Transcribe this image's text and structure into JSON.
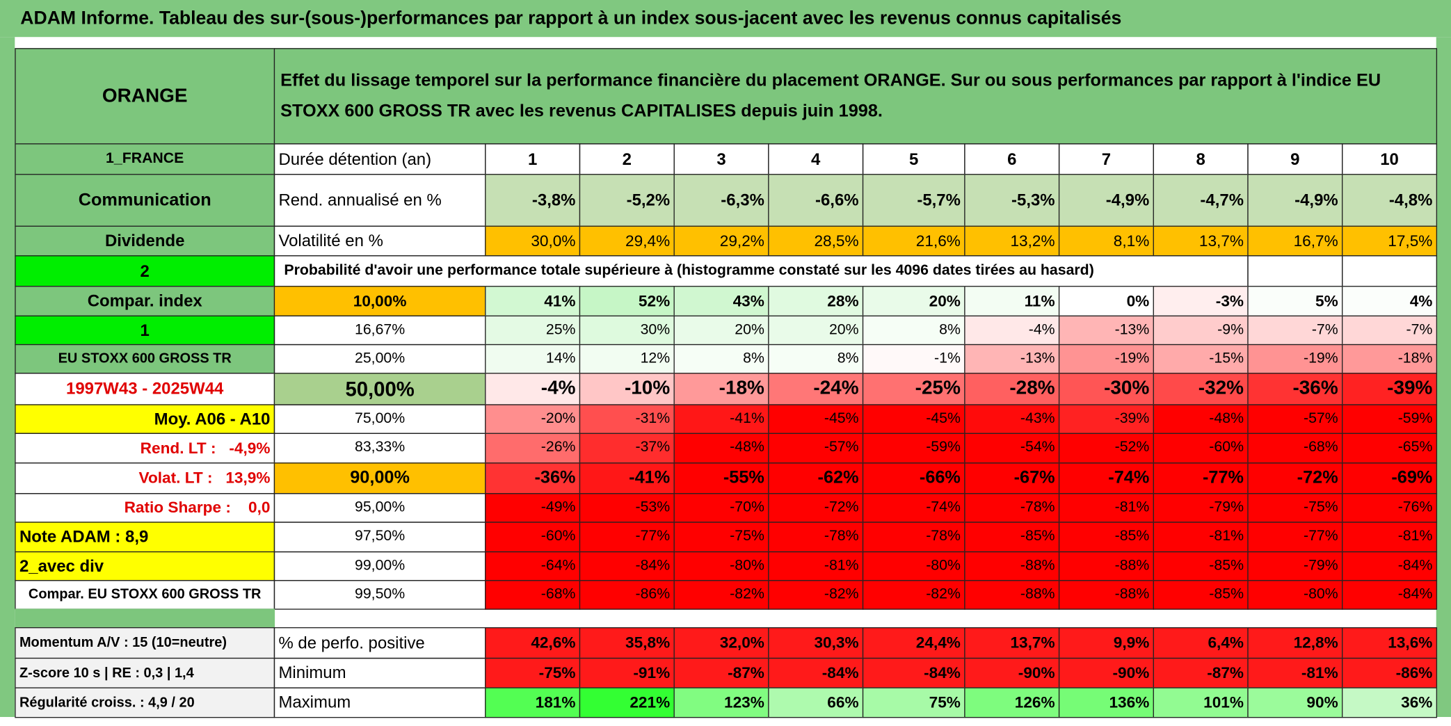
{
  "title": "ADAM Informe. Tableau des sur-(sous-)performances par rapport à un index sous-jacent avec les revenus connus capitalisés",
  "header": {
    "name": "ORANGE",
    "description": "Effet du lissage temporel sur la performance financière du placement ORANGE. Sur ou sous performances par rapport à l'indice EU STOXX 600 GROSS TR avec les revenus CAPITALISES depuis juin 1998."
  },
  "duration": {
    "left": "1_FRANCE",
    "label": "Durée détention (an)",
    "values": [
      "1",
      "2",
      "3",
      "4",
      "5",
      "6",
      "7",
      "8",
      "9",
      "10"
    ]
  },
  "return": {
    "left": "Communication",
    "label": "Rend. annualisé en %",
    "values": [
      "-3,8%",
      "-5,2%",
      "-6,3%",
      "-6,6%",
      "-5,7%",
      "-5,3%",
      "-4,9%",
      "-4,7%",
      "-4,9%",
      "-4,8%"
    ]
  },
  "volatility": {
    "left": "Dividende",
    "label": "Volatilité en %",
    "values": [
      "30,0%",
      "29,4%",
      "29,2%",
      "28,5%",
      "21,6%",
      "13,2%",
      "8,1%",
      "13,7%",
      "16,7%",
      "17,5%"
    ]
  },
  "probability": {
    "left": "2",
    "label": "Probabilité d'avoir une performance totale supérieure à (histogramme constaté sur les 4096 dates tirées au hasard)"
  },
  "percentiles": [
    {
      "left": "Compar. index",
      "level": "10,00%",
      "values": [
        "41%",
        "52%",
        "43%",
        "28%",
        "20%",
        "11%",
        "0%",
        "-3%",
        "5%",
        "4%"
      ]
    },
    {
      "left": "1",
      "level": "16,67%",
      "values": [
        "25%",
        "30%",
        "20%",
        "20%",
        "8%",
        "-4%",
        "-13%",
        "-9%",
        "-7%",
        "-7%"
      ]
    },
    {
      "left": "EU STOXX 600 GROSS TR",
      "level": "25,00%",
      "values": [
        "14%",
        "12%",
        "8%",
        "8%",
        "-1%",
        "-13%",
        "-19%",
        "-15%",
        "-19%",
        "-18%"
      ]
    },
    {
      "left": "1997W43 - 2025W44",
      "level": "50,00%",
      "values": [
        "-4%",
        "-10%",
        "-18%",
        "-24%",
        "-25%",
        "-28%",
        "-30%",
        "-32%",
        "-36%",
        "-39%"
      ]
    },
    {
      "left": "Moy. A06 - A10",
      "level": "75,00%",
      "values": [
        "-20%",
        "-31%",
        "-41%",
        "-45%",
        "-45%",
        "-43%",
        "-39%",
        "-48%",
        "-57%",
        "-59%"
      ]
    },
    {
      "left": "Rend. LT :   -4,9%",
      "level": "83,33%",
      "values": [
        "-26%",
        "-37%",
        "-48%",
        "-57%",
        "-59%",
        "-54%",
        "-52%",
        "-60%",
        "-68%",
        "-65%"
      ]
    },
    {
      "left": "Volat. LT :   13,9%",
      "level": "90,00%",
      "values": [
        "-36%",
        "-41%",
        "-55%",
        "-62%",
        "-66%",
        "-67%",
        "-74%",
        "-77%",
        "-72%",
        "-69%"
      ]
    },
    {
      "left": "Ratio Sharpe :    0,0",
      "level": "95,00%",
      "values": [
        "-49%",
        "-53%",
        "-70%",
        "-72%",
        "-74%",
        "-78%",
        "-81%",
        "-79%",
        "-75%",
        "-76%"
      ]
    },
    {
      "left": "Note ADAM : 8,9",
      "level": "97,50%",
      "values": [
        "-60%",
        "-77%",
        "-75%",
        "-78%",
        "-78%",
        "-85%",
        "-85%",
        "-81%",
        "-77%",
        "-81%"
      ]
    },
    {
      "left": "2_avec div",
      "level": "99,00%",
      "values": [
        "-64%",
        "-84%",
        "-80%",
        "-81%",
        "-80%",
        "-88%",
        "-88%",
        "-85%",
        "-79%",
        "-84%"
      ]
    },
    {
      "left": "Compar. EU STOXX 600 GROSS TR",
      "level": "99,50%",
      "values": [
        "-68%",
        "-86%",
        "-82%",
        "-82%",
        "-82%",
        "-88%",
        "-88%",
        "-85%",
        "-80%",
        "-84%"
      ]
    }
  ],
  "stats": [
    {
      "left": "Momentum A/V : 15 (10=neutre)",
      "label": "% de perfo. positive",
      "values": [
        "42,6%",
        "35,8%",
        "32,0%",
        "30,3%",
        "24,4%",
        "13,7%",
        "9,9%",
        "6,4%",
        "12,8%",
        "13,6%"
      ]
    },
    {
      "left": "Z-score 10 s | RE : 0,3 | 1,4",
      "label": "Minimum",
      "values": [
        "-75%",
        "-91%",
        "-87%",
        "-84%",
        "-84%",
        "-90%",
        "-90%",
        "-87%",
        "-81%",
        "-86%"
      ]
    },
    {
      "left": "Régularité croiss. : 4,9 / 20",
      "label": "Maximum",
      "values": [
        "181%",
        "221%",
        "123%",
        "66%",
        "75%",
        "126%",
        "136%",
        "101%",
        "90%",
        "36%"
      ]
    }
  ]
}
